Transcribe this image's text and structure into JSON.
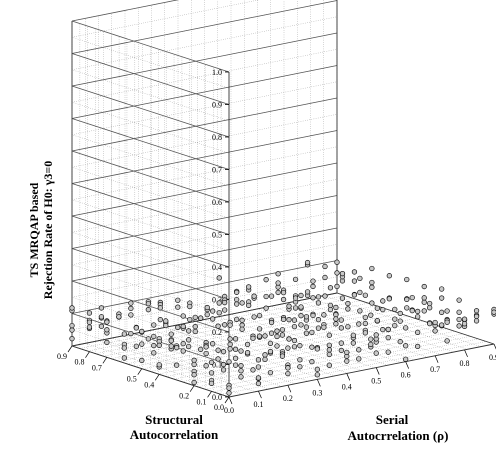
{
  "chart_data": {
    "type": "scatter",
    "projection": "3d",
    "title": "",
    "axes": {
      "z": {
        "label_lines": [
          "TS MRQAP based",
          "Rejection Rate of H0: γ3=0"
        ],
        "range": [
          0,
          1.0
        ],
        "ticks": [
          "0.0",
          "0.1",
          "0.2",
          "0.3",
          "0.4",
          "0.5",
          "0.6",
          "0.7",
          "0.8",
          "0.9",
          "1.0"
        ]
      },
      "x": {
        "label_lines": [
          "Structural",
          "Autocorrelation"
        ],
        "range": [
          0,
          0.9
        ],
        "ticks": [
          "0.0",
          "0.1",
          "0.2",
          "0.4",
          "0.5",
          "0.7",
          "0.8",
          "0.9"
        ]
      },
      "y": {
        "label_lines": [
          "Serial",
          "Autocrrelation (ρ)"
        ],
        "range": [
          0,
          0.9
        ],
        "ticks": [
          "0.0",
          "0.1",
          "0.2",
          "0.3",
          "0.4",
          "0.5",
          "0.6",
          "0.7",
          "0.8",
          "0.9"
        ]
      }
    },
    "grid": true,
    "value_range": [
      0.0,
      0.12
    ],
    "description_of_values": "Rejection rates cluster between roughly 0.0 and 0.11 across all structural/serial autocorrelation combinations"
  }
}
